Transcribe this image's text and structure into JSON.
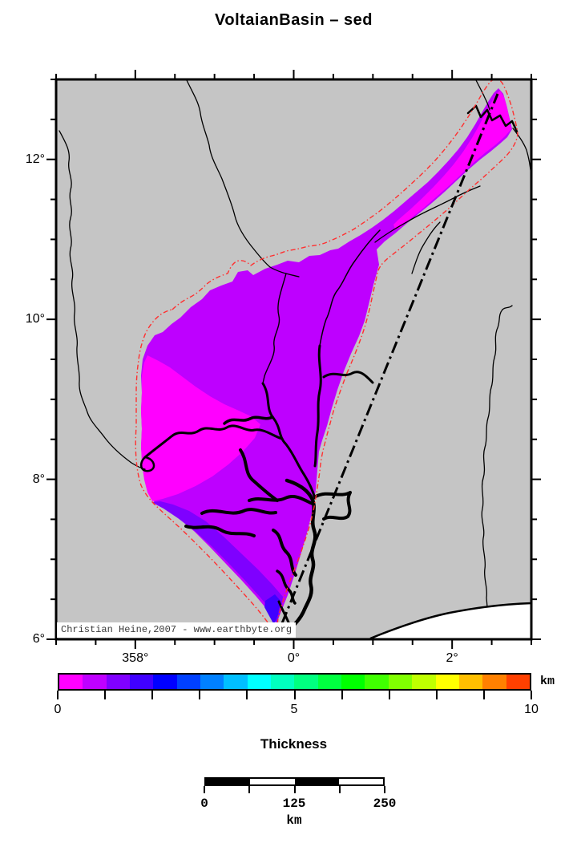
{
  "title": "VoltaianBasin – sed",
  "map": {
    "lat_ticks": [
      {
        "label": "12°",
        "deg": 12
      },
      {
        "label": "10°",
        "deg": 10
      },
      {
        "label": "8°",
        "deg": 8
      },
      {
        "label": "6°",
        "deg": 6
      }
    ],
    "lon_ticks": [
      {
        "label": "358°",
        "deg": -2
      },
      {
        "label": "0°",
        "deg": 0
      },
      {
        "label": "2°",
        "deg": 2
      }
    ],
    "copyright": "Christian Heine,2007 - www.earthbyte.org",
    "colors": {
      "land": "#c5c5c5",
      "ocean": "#ffffff",
      "basin_0_to_0p5km": "#ff00ff",
      "basin_0p5_to_1km": "#be00ff",
      "basin_1_to_1p5km": "#7f00ff",
      "basin_1p5_to_2km": "#4000ff",
      "basin_outline": "#ff3030",
      "boundaries": "#000000"
    }
  },
  "colorbar": {
    "title": "Thickness",
    "unit": "km",
    "min": 0,
    "max": 10,
    "step_km": 0.5,
    "tick_labels": [
      "0",
      "5",
      "10"
    ],
    "colors": [
      "#ff00ff",
      "#bf00ff",
      "#8000ff",
      "#4000ff",
      "#0000ff",
      "#0040ff",
      "#0080ff",
      "#00bfff",
      "#00ffff",
      "#00ffbf",
      "#00ff80",
      "#00ff40",
      "#00ff00",
      "#40ff00",
      "#80ff00",
      "#bfff00",
      "#ffff00",
      "#ffbf00",
      "#ff8000",
      "#ff4000"
    ]
  },
  "scalebar": {
    "tick_labels": [
      "0",
      "125",
      "250"
    ],
    "unit": "km"
  }
}
